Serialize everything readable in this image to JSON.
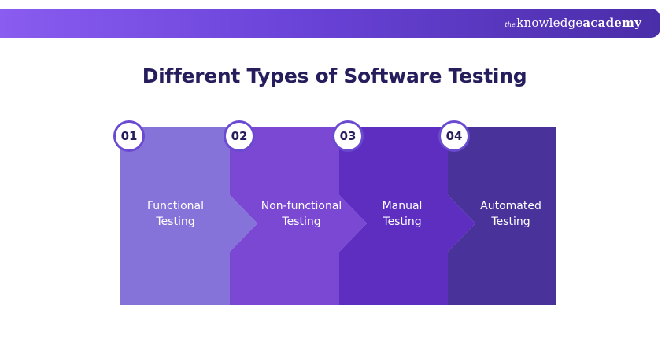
{
  "brand": {
    "prefix": "the",
    "word1": "knowledge",
    "word2": "academy"
  },
  "title": "Different Types of Software Testing",
  "steps": [
    {
      "number": "01",
      "line1": "Functional",
      "line2": "Testing",
      "color": "#8673d9"
    },
    {
      "number": "02",
      "line1": "Non-functional",
      "line2": "Testing",
      "color": "#7a48d3"
    },
    {
      "number": "03",
      "line1": "Manual",
      "line2": "Testing",
      "color": "#5d2ebf"
    },
    {
      "number": "04",
      "line1": "Automated",
      "line2": "Testing",
      "color": "#49339a"
    }
  ],
  "colors": {
    "title": "#251d5c",
    "banner_start": "#8a5cf0",
    "banner_end": "#4a2da8"
  }
}
